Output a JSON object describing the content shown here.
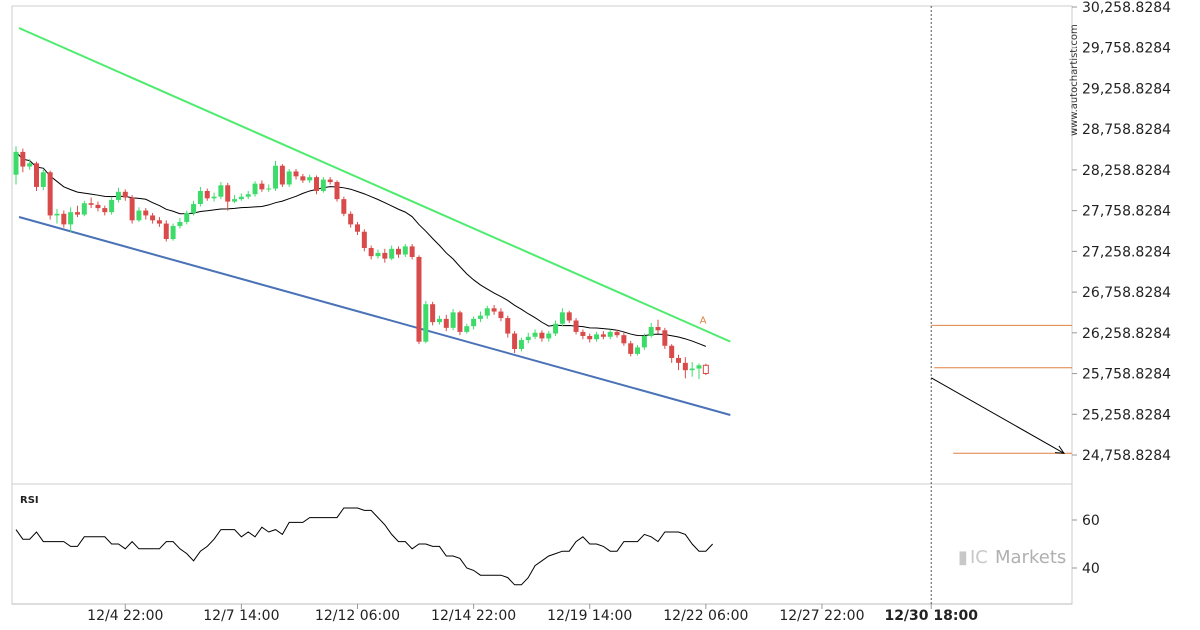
{
  "watermark": "www.autochartist.com",
  "brand": {
    "prefix": "IC",
    "name": "Markets"
  },
  "chart_data": [
    {
      "type": "candlestick",
      "y_ticks": [
        "30,258.8284",
        "29,758.8284",
        "29,258.8284",
        "28,758.8284",
        "28,258.8284",
        "27,758.8284",
        "27,258.8284",
        "26,758.8284",
        "26,258.8284",
        "25,758.8284",
        "25,258.8284",
        "24,758.8284"
      ],
      "y_tick_values": [
        30258.8284,
        29758.8284,
        29258.8284,
        28758.8284,
        28258.8284,
        27758.8284,
        27258.8284,
        26758.8284,
        26258.8284,
        25758.8284,
        25258.8284,
        24758.8284
      ],
      "ylim": [
        24600,
        30300
      ],
      "x_ticks": [
        "12/4 22:00",
        "12/7 14:00",
        "12/12 06:00",
        "12/14 22:00",
        "12/19 14:00",
        "12/22 06:00",
        "12/27 22:00",
        "12/30 18:00"
      ],
      "x_tick_index": [
        16,
        33,
        50,
        67,
        84,
        101,
        118,
        134
      ],
      "highlight_tick": "12/30 18:00",
      "candles": [
        [
          28200,
          28480,
          28550,
          28080
        ],
        [
          28480,
          28300,
          28520,
          28230
        ],
        [
          28300,
          28340,
          28390,
          28260
        ],
        [
          28340,
          28050,
          28360,
          28000
        ],
        [
          28050,
          28230,
          28260,
          28010
        ],
        [
          28230,
          27700,
          28250,
          27650
        ],
        [
          27700,
          27720,
          27780,
          27600
        ],
        [
          27720,
          27590,
          27760,
          27550
        ],
        [
          27590,
          27740,
          27800,
          27490
        ],
        [
          27740,
          27710,
          27820,
          27680
        ],
        [
          27710,
          27850,
          27880,
          27690
        ],
        [
          27850,
          27830,
          27920,
          27790
        ],
        [
          27830,
          27790,
          27870,
          27750
        ],
        [
          27790,
          27740,
          27820,
          27700
        ],
        [
          27740,
          27890,
          27920,
          27710
        ],
        [
          27890,
          27990,
          28040,
          27860
        ],
        [
          27990,
          27920,
          28020,
          27880
        ],
        [
          27920,
          27640,
          27950,
          27600
        ],
        [
          27640,
          27760,
          27800,
          27620
        ],
        [
          27760,
          27700,
          27790,
          27650
        ],
        [
          27700,
          27640,
          27730,
          27600
        ],
        [
          27640,
          27600,
          27680,
          27560
        ],
        [
          27600,
          27410,
          27640,
          27380
        ],
        [
          27410,
          27570,
          27600,
          27390
        ],
        [
          27570,
          27620,
          27670,
          27540
        ],
        [
          27620,
          27730,
          27760,
          27590
        ],
        [
          27730,
          27840,
          27880,
          27700
        ],
        [
          27840,
          28000,
          28050,
          27810
        ],
        [
          28000,
          27910,
          28030,
          27880
        ],
        [
          27910,
          27930,
          27980,
          27870
        ],
        [
          27930,
          28070,
          28110,
          27900
        ],
        [
          28070,
          27870,
          28100,
          27760
        ],
        [
          27870,
          27900,
          27950,
          27850
        ],
        [
          27900,
          27930,
          27970,
          27880
        ],
        [
          27930,
          27960,
          28000,
          27900
        ],
        [
          27960,
          28090,
          28120,
          27930
        ],
        [
          28090,
          28020,
          28130,
          27990
        ],
        [
          28020,
          28030,
          28080,
          27990
        ],
        [
          28030,
          28310,
          28370,
          28000
        ],
        [
          28310,
          28080,
          28330,
          28050
        ],
        [
          28080,
          28240,
          28270,
          28050
        ],
        [
          28240,
          28180,
          28270,
          28140
        ],
        [
          28180,
          28130,
          28210,
          28100
        ],
        [
          28130,
          28170,
          28200,
          28100
        ],
        [
          28170,
          28000,
          28190,
          27960
        ],
        [
          28000,
          28140,
          28170,
          27980
        ],
        [
          28140,
          28110,
          28170,
          28080
        ],
        [
          28110,
          27900,
          28130,
          27870
        ],
        [
          27900,
          27720,
          27930,
          27690
        ],
        [
          27720,
          27590,
          27750,
          27550
        ],
        [
          27590,
          27500,
          27620,
          27460
        ],
        [
          27500,
          27300,
          27530,
          27260
        ],
        [
          27300,
          27200,
          27330,
          27160
        ],
        [
          27200,
          27240,
          27280,
          27170
        ],
        [
          27240,
          27170,
          27290,
          27120
        ],
        [
          27170,
          27290,
          27330,
          27150
        ],
        [
          27290,
          27220,
          27320,
          27180
        ],
        [
          27220,
          27320,
          27350,
          27190
        ],
        [
          27320,
          27190,
          27350,
          27160
        ],
        [
          27190,
          26150,
          27210,
          26120
        ],
        [
          26150,
          26610,
          26650,
          26130
        ],
        [
          26610,
          26390,
          26640,
          26350
        ],
        [
          26390,
          26430,
          26470,
          26360
        ],
        [
          26430,
          26320,
          26480,
          26280
        ],
        [
          26320,
          26510,
          26550,
          26290
        ],
        [
          26510,
          26270,
          26530,
          26230
        ],
        [
          26270,
          26340,
          26370,
          26250
        ],
        [
          26340,
          26430,
          26460,
          26300
        ],
        [
          26430,
          26470,
          26520,
          26390
        ],
        [
          26470,
          26560,
          26590,
          26430
        ],
        [
          26560,
          26520,
          26600,
          26480
        ],
        [
          26520,
          26440,
          26560,
          26400
        ],
        [
          26440,
          26250,
          26470,
          26200
        ],
        [
          26250,
          26060,
          26280,
          26010
        ],
        [
          26060,
          26170,
          26200,
          26030
        ],
        [
          26170,
          26210,
          26260,
          26130
        ],
        [
          26210,
          26260,
          26300,
          26180
        ],
        [
          26260,
          26190,
          26290,
          26150
        ],
        [
          26190,
          26250,
          26280,
          26150
        ],
        [
          26250,
          26370,
          26410,
          26220
        ],
        [
          26370,
          26510,
          26560,
          26340
        ],
        [
          26510,
          26410,
          26530,
          26380
        ],
        [
          26410,
          26270,
          26440,
          26240
        ],
        [
          26270,
          26220,
          26300,
          26180
        ],
        [
          26220,
          26180,
          26250,
          26140
        ],
        [
          26180,
          26240,
          26270,
          26150
        ],
        [
          26240,
          26210,
          26280,
          26180
        ],
        [
          26210,
          26270,
          26300,
          26180
        ],
        [
          26270,
          26230,
          26300,
          26200
        ],
        [
          26230,
          26130,
          26260,
          26100
        ],
        [
          26130,
          26000,
          26160,
          25970
        ],
        [
          26000,
          26080,
          26110,
          25980
        ],
        [
          26080,
          26220,
          26250,
          26050
        ],
        [
          26220,
          26330,
          26380,
          26200
        ],
        [
          26330,
          26290,
          26420,
          26250
        ],
        [
          26290,
          26100,
          26320,
          26060
        ],
        [
          26100,
          25950,
          26120,
          25890
        ],
        [
          25950,
          25890,
          25990,
          25800
        ],
        [
          25890,
          25800,
          25960,
          25700
        ],
        [
          25800,
          25820,
          25900,
          25720
        ],
        [
          25820,
          25860,
          25880,
          25690
        ],
        [
          25860,
          25760,
          25880,
          25740
        ]
      ],
      "candle_colors": {
        "up": "#3ddc6a",
        "down": "#d94a4a"
      },
      "moving_average_color": "#000000",
      "resistance_line": {
        "start": [
          0,
          29800
        ],
        "end": [
          104,
          26200
        ],
        "color": "#4dec6e"
      },
      "support_line": {
        "start": [
          0,
          27650
        ],
        "end": [
          104,
          25270
        ],
        "color": "#4a72b6"
      },
      "forecast_arrow": {
        "start": [
          104,
          25780
        ],
        "end": [
          130,
          24780
        ],
        "color": "#000000"
      },
      "pattern_marker": "A",
      "level_lines": {
        "values": [
          26350,
          25830,
          24780
        ],
        "color": "#e08040"
      }
    },
    {
      "type": "line",
      "title": "RSI",
      "y_ticks": [
        "60",
        "40"
      ],
      "y_tick_values": [
        60,
        40
      ],
      "ylim": [
        25,
        75
      ],
      "values": [
        56,
        52,
        52,
        55,
        51,
        51,
        51,
        51,
        49,
        49,
        53,
        53,
        53,
        53,
        50,
        50,
        48,
        51,
        48,
        48,
        48,
        48,
        51,
        51,
        48,
        46,
        43,
        47,
        49,
        52,
        56,
        56,
        56,
        53,
        55,
        53,
        57,
        55,
        56,
        54,
        59,
        59,
        59,
        61,
        61,
        61,
        61,
        61,
        65,
        65,
        65,
        64,
        64,
        61,
        58,
        54,
        51,
        51,
        48,
        50,
        50,
        49,
        49,
        45,
        45,
        44,
        40,
        39,
        37,
        37,
        37,
        37,
        36,
        33,
        33,
        36,
        41,
        43,
        45,
        46,
        47,
        47,
        51,
        53,
        50,
        50,
        49,
        47,
        47,
        51,
        51,
        51,
        54,
        53,
        51,
        55,
        55,
        55,
        54,
        50,
        47,
        47,
        50
      ]
    }
  ]
}
